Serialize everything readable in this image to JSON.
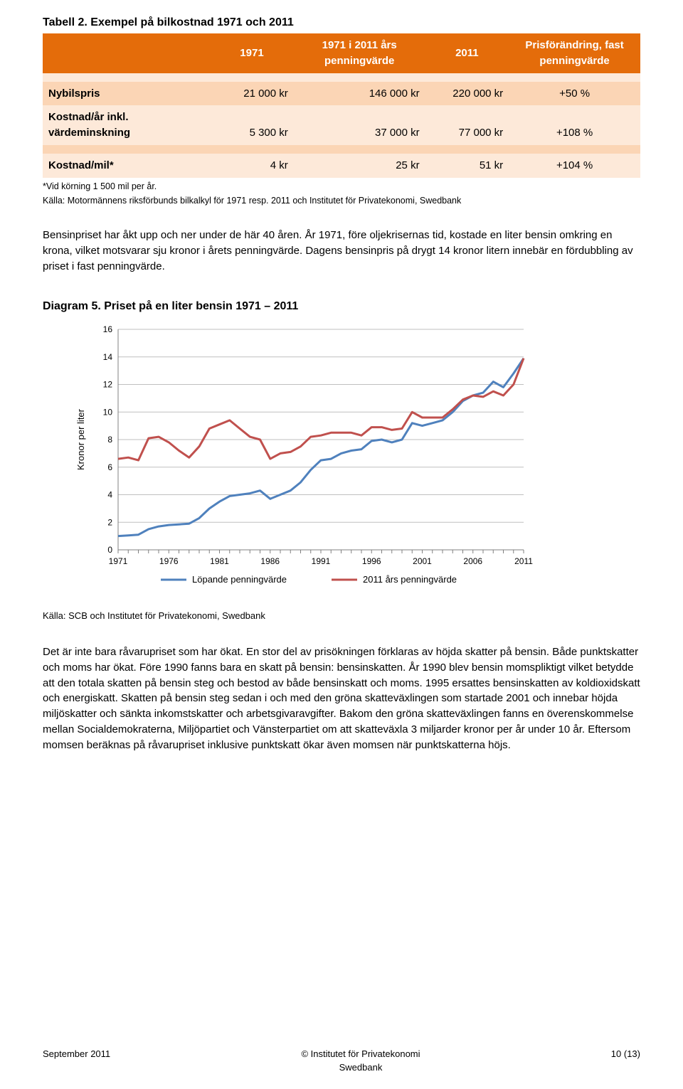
{
  "table": {
    "title": "Tabell 2. Exempel på bilkostnad 1971 och 2011",
    "header_bg": "#e46c0a",
    "header_fg": "#ffffff",
    "row_colors": [
      "#fde9d9",
      "#fbd5b5"
    ],
    "columns": [
      "",
      "1971",
      "1971 i 2011 års penningvärde",
      "2011",
      "Prisförändring, fast penningvärde"
    ],
    "rows": [
      {
        "label": "Nybilspris",
        "v1": "21 000 kr",
        "v2": "146 000 kr",
        "v3": "220 000 kr",
        "v4": "+50 %"
      },
      {
        "label": "Kostnad/år inkl. värdeminskning",
        "v1": "5 300 kr",
        "v2": "37 000 kr",
        "v3": "77 000 kr",
        "v4": "+108 %"
      },
      {
        "label": "",
        "v1": "",
        "v2": "",
        "v3": "",
        "v4": ""
      },
      {
        "label": "Kostnad/mil*",
        "v1": "4 kr",
        "v2": "25 kr",
        "v3": "51 kr",
        "v4": "+104 %"
      }
    ],
    "footnote1": "*Vid körning 1 500 mil per år.",
    "footnote2": "Källa: Motormännens riksförbunds bilkalkyl för 1971 resp. 2011 och Institutet för Privatekonomi, Swedbank"
  },
  "para1": "Bensinpriset har åkt upp och ner under de här 40 åren. År 1971, före oljekrisernas tid, kostade en liter bensin omkring en krona, vilket motsvarar sju kronor i årets penningvärde. Dagens bensinpris på drygt 14 kronor litern innebär en fördubbling av priset i fast penningvärde.",
  "diagram": {
    "title": "Diagram 5. Priset på en liter bensin 1971 – 2011",
    "ylabel": "Kronor per liter",
    "ylim": [
      0,
      16
    ],
    "ytick_step": 2,
    "xlim": [
      1971,
      2011
    ],
    "xticks": [
      1971,
      1976,
      1981,
      1986,
      1991,
      1996,
      2001,
      2006,
      2011
    ],
    "background_color": "#ffffff",
    "grid_color": "#bfbfbf",
    "frame_color": "#808080",
    "line_width": 3,
    "series": [
      {
        "name": "Löpande penningvärde",
        "color": "#4f81bd",
        "values": [
          1.0,
          1.05,
          1.1,
          1.5,
          1.7,
          1.8,
          1.85,
          1.9,
          2.3,
          3.0,
          3.5,
          3.9,
          4.0,
          4.1,
          4.3,
          3.7,
          4.0,
          4.3,
          4.9,
          5.8,
          6.5,
          6.6,
          7.0,
          7.2,
          7.3,
          7.9,
          8.0,
          7.8,
          8.0,
          9.2,
          9.0,
          9.2,
          9.4,
          10.0,
          10.8,
          11.2,
          11.4,
          12.2,
          11.8,
          12.8,
          13.9
        ]
      },
      {
        "name": "2011 års penningvärde",
        "color": "#c0504d",
        "values": [
          6.6,
          6.7,
          6.5,
          8.1,
          8.2,
          7.8,
          7.2,
          6.7,
          7.5,
          8.8,
          9.1,
          9.4,
          8.8,
          8.2,
          8.0,
          6.6,
          7.0,
          7.1,
          7.5,
          8.2,
          8.3,
          8.5,
          8.5,
          8.5,
          8.3,
          8.9,
          8.9,
          8.7,
          8.8,
          10.0,
          9.6,
          9.6,
          9.6,
          10.2,
          10.9,
          11.2,
          11.1,
          11.5,
          11.2,
          12.0,
          13.9
        ]
      }
    ],
    "legend": [
      "Löpande penningvärde",
      "2011 års penningvärde"
    ],
    "source": "Källa: SCB och Institutet för Privatekonomi, Swedbank"
  },
  "para2": "Det är inte bara råvarupriset som har ökat. En stor del av prisökningen förklaras av höjda skatter på bensin. Både punktskatter och moms har ökat. Före 1990 fanns bara en skatt på bensin: bensinskatten. År 1990 blev bensin momspliktigt vilket betydde att den totala skatten på bensin steg och bestod av både bensinskatt och moms. 1995 ersattes bensinskatten av koldioxidskatt och energiskatt. Skatten på bensin steg sedan i och med den gröna skatteväxlingen som startade 2001 och innebar höjda miljöskatter och sänkta inkomstskatter och arbetsgivaravgifter. Bakom den gröna skatteväxlingen fanns en överenskommelse mellan Socialdemokraterna, Miljöpartiet och Vänsterpartiet om att skatteväxla 3 miljarder kronor per år under 10 år. Eftersom momsen beräknas på råvarupriset inklusive punktskatt ökar även momsen när punktskatterna höjs.",
  "footer": {
    "left": "September 2011",
    "center_line1": "© Institutet för Privatekonomi",
    "center_line2": "Swedbank",
    "right": "10 (13)"
  }
}
